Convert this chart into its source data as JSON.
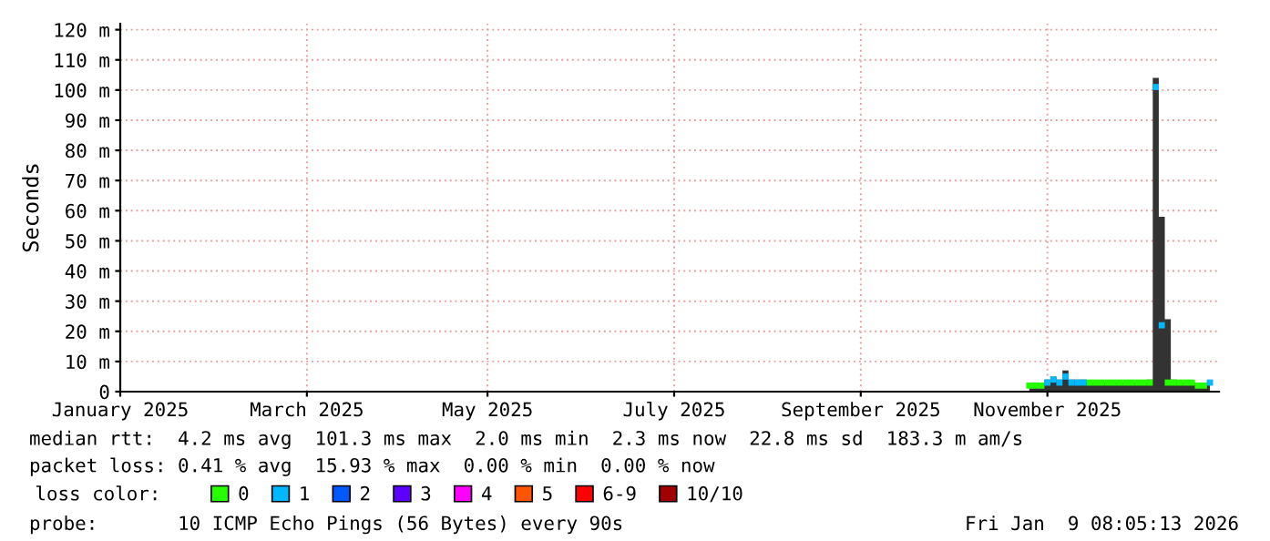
{
  "chart_data": {
    "type": "scatter",
    "ylabel": "Seconds",
    "legend_title": "loss color:",
    "legend": "bottom",
    "grid": true,
    "marker": "square",
    "x": [
      "2025-11-07",
      "2025-11-09",
      "2025-11-11",
      "2025-11-13",
      "2025-11-15",
      "2025-11-17",
      "2025-11-19",
      "2025-11-21",
      "2025-11-23",
      "2025-11-25",
      "2025-11-27",
      "2025-11-29",
      "2025-12-01",
      "2025-12-03",
      "2025-12-05",
      "2025-12-07",
      "2025-12-09",
      "2025-12-11",
      "2025-12-13",
      "2025-12-15",
      "2025-12-17",
      "2025-12-19",
      "2025-12-21",
      "2025-12-23",
      "2025-12-25",
      "2025-12-27",
      "2025-12-29",
      "2025-12-31",
      "2026-01-02",
      "2026-01-04",
      "2026-01-06"
    ],
    "xlim": [
      "2025-01-09",
      "2026-01-09"
    ],
    "xticks": [
      {
        "value": "2025-01-09",
        "label": "January 2025"
      },
      {
        "value": "2025-03-12",
        "label": "March 2025"
      },
      {
        "value": "2025-05-11",
        "label": "May 2025"
      },
      {
        "value": "2025-07-12",
        "label": "July 2025"
      },
      {
        "value": "2025-09-12",
        "label": "September 2025"
      },
      {
        "value": "2025-11-13",
        "label": "November 2025"
      }
    ],
    "ylim": [
      0,
      122
    ],
    "yticks": [
      0,
      {
        "value": 10,
        "label": "10 m"
      },
      {
        "value": 20,
        "label": "20 m"
      },
      {
        "value": 30,
        "label": "30 m"
      },
      {
        "value": 40,
        "label": "40 m"
      },
      {
        "value": 50,
        "label": "50 m"
      },
      {
        "value": 60,
        "label": "60 m"
      },
      {
        "value": 70,
        "label": "70 m"
      },
      {
        "value": 80,
        "label": "80 m"
      },
      {
        "value": 90,
        "label": "90 m"
      },
      {
        "value": 100,
        "label": "100 m"
      },
      {
        "value": 110,
        "label": "110 m"
      },
      {
        "value": 120,
        "label": "120 m"
      }
    ],
    "series": [
      {
        "type": "area",
        "marker": "none",
        "color": "#333333",
        "values": [
          3,
          3,
          3,
          4,
          5,
          4,
          7,
          4,
          4,
          4,
          3,
          3,
          3,
          3,
          3,
          3,
          3,
          3,
          3,
          3,
          4,
          104,
          58,
          24,
          4,
          3,
          3,
          3,
          3,
          3,
          3
        ]
      },
      {
        "name": "0",
        "color": "#26ff00",
        "values": [
          2,
          2,
          2,
          null,
          null,
          null,
          null,
          null,
          null,
          null,
          3,
          3,
          3,
          3,
          3,
          3,
          3,
          3,
          3,
          3,
          3,
          null,
          null,
          3,
          3,
          3,
          3,
          3,
          2,
          2,
          null
        ]
      },
      {
        "name": "1",
        "color": "#00b8ff",
        "values": [
          null,
          null,
          null,
          3,
          4,
          3,
          5,
          3,
          3,
          3,
          null,
          null,
          null,
          null,
          null,
          null,
          null,
          null,
          null,
          null,
          null,
          101,
          22,
          null,
          null,
          null,
          null,
          null,
          null,
          null,
          3
        ]
      },
      {
        "name": "2",
        "color": "#0059ff",
        "values": [
          null,
          null,
          null,
          null,
          null,
          null,
          null,
          null,
          null,
          null,
          null,
          null,
          null,
          null,
          null,
          null,
          null,
          null,
          null,
          null,
          null,
          null,
          null,
          null,
          null,
          null,
          null,
          null,
          null,
          null,
          null
        ]
      },
      {
        "name": "3",
        "color": "#5e00ff",
        "values": [
          null,
          null,
          null,
          null,
          null,
          null,
          null,
          null,
          null,
          null,
          null,
          null,
          null,
          null,
          null,
          null,
          null,
          null,
          null,
          null,
          null,
          null,
          null,
          null,
          null,
          null,
          null,
          null,
          null,
          null,
          null
        ]
      },
      {
        "name": "4",
        "color": "#ff00fe",
        "values": [
          null,
          null,
          null,
          null,
          null,
          null,
          null,
          null,
          null,
          null,
          null,
          null,
          null,
          null,
          null,
          null,
          null,
          null,
          null,
          null,
          null,
          null,
          null,
          null,
          null,
          null,
          null,
          null,
          null,
          null,
          null
        ]
      },
      {
        "name": "5",
        "color": "#ff5500",
        "values": [
          null,
          null,
          null,
          null,
          null,
          null,
          null,
          null,
          null,
          null,
          null,
          null,
          null,
          null,
          null,
          null,
          null,
          null,
          null,
          null,
          null,
          null,
          null,
          null,
          null,
          null,
          null,
          null,
          null,
          null,
          null
        ]
      },
      {
        "name": "6-9",
        "color": "#ff0000",
        "values": [
          null,
          null,
          null,
          null,
          null,
          null,
          null,
          null,
          null,
          null,
          null,
          null,
          null,
          null,
          null,
          null,
          null,
          null,
          null,
          null,
          null,
          null,
          null,
          null,
          null,
          null,
          null,
          null,
          null,
          null,
          null
        ]
      },
      {
        "name": "10/10",
        "color": "#a10000",
        "values": [
          null,
          null,
          null,
          null,
          null,
          null,
          null,
          null,
          null,
          null,
          null,
          null,
          null,
          null,
          null,
          null,
          null,
          null,
          null,
          null,
          null,
          null,
          null,
          null,
          null,
          null,
          null,
          null,
          null,
          null,
          null
        ]
      }
    ],
    "annotations": [
      "median rtt:  4.2 ms avg  101.3 ms max  2.0 ms min  2.3 ms now  22.8 ms sd  183.3 m am/s",
      "packet loss: 0.41 % avg  15.93 % max  0.00 % min  0.00 % now",
      "probe:       10 ICMP Echo Pings (56 Bytes) every 90s",
      "Fri Jan  9 08:05:13 2026"
    ]
  }
}
